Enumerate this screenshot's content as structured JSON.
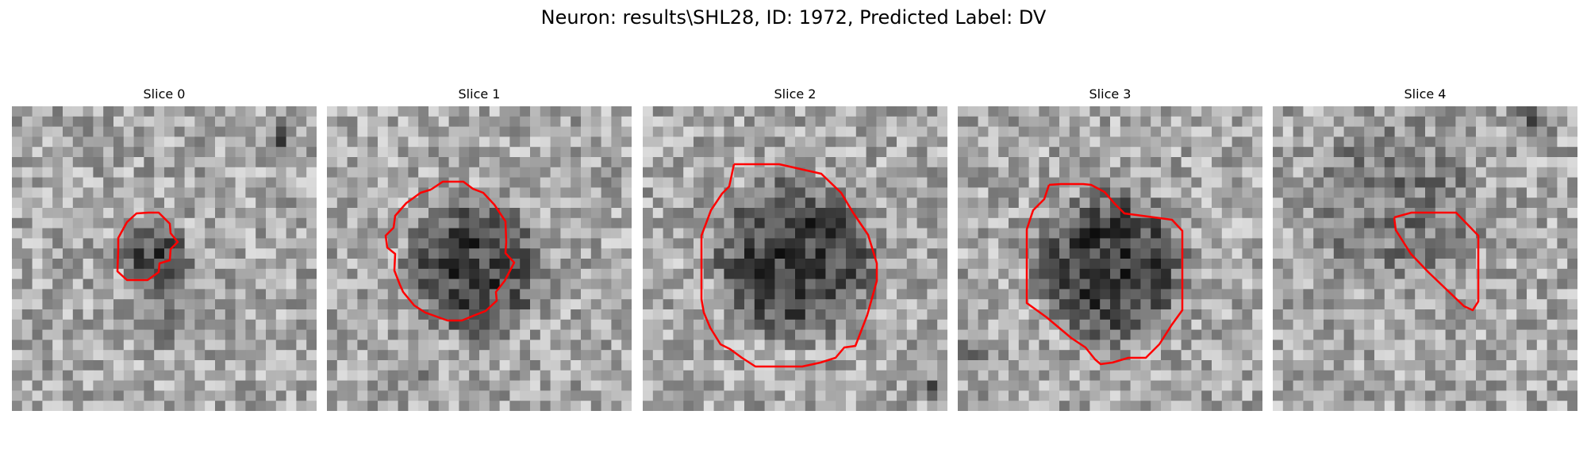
{
  "figure": {
    "title": "Neuron: results\\SHL28, ID: 1972, Predicted Label: DV",
    "outline_color": "#ff0000",
    "colormap": "gray"
  },
  "slices": [
    {
      "title": "Slice 0"
    },
    {
      "title": "Slice 1"
    },
    {
      "title": "Slice 2"
    },
    {
      "title": "Slice 3"
    },
    {
      "title": "Slice 4"
    }
  ]
}
